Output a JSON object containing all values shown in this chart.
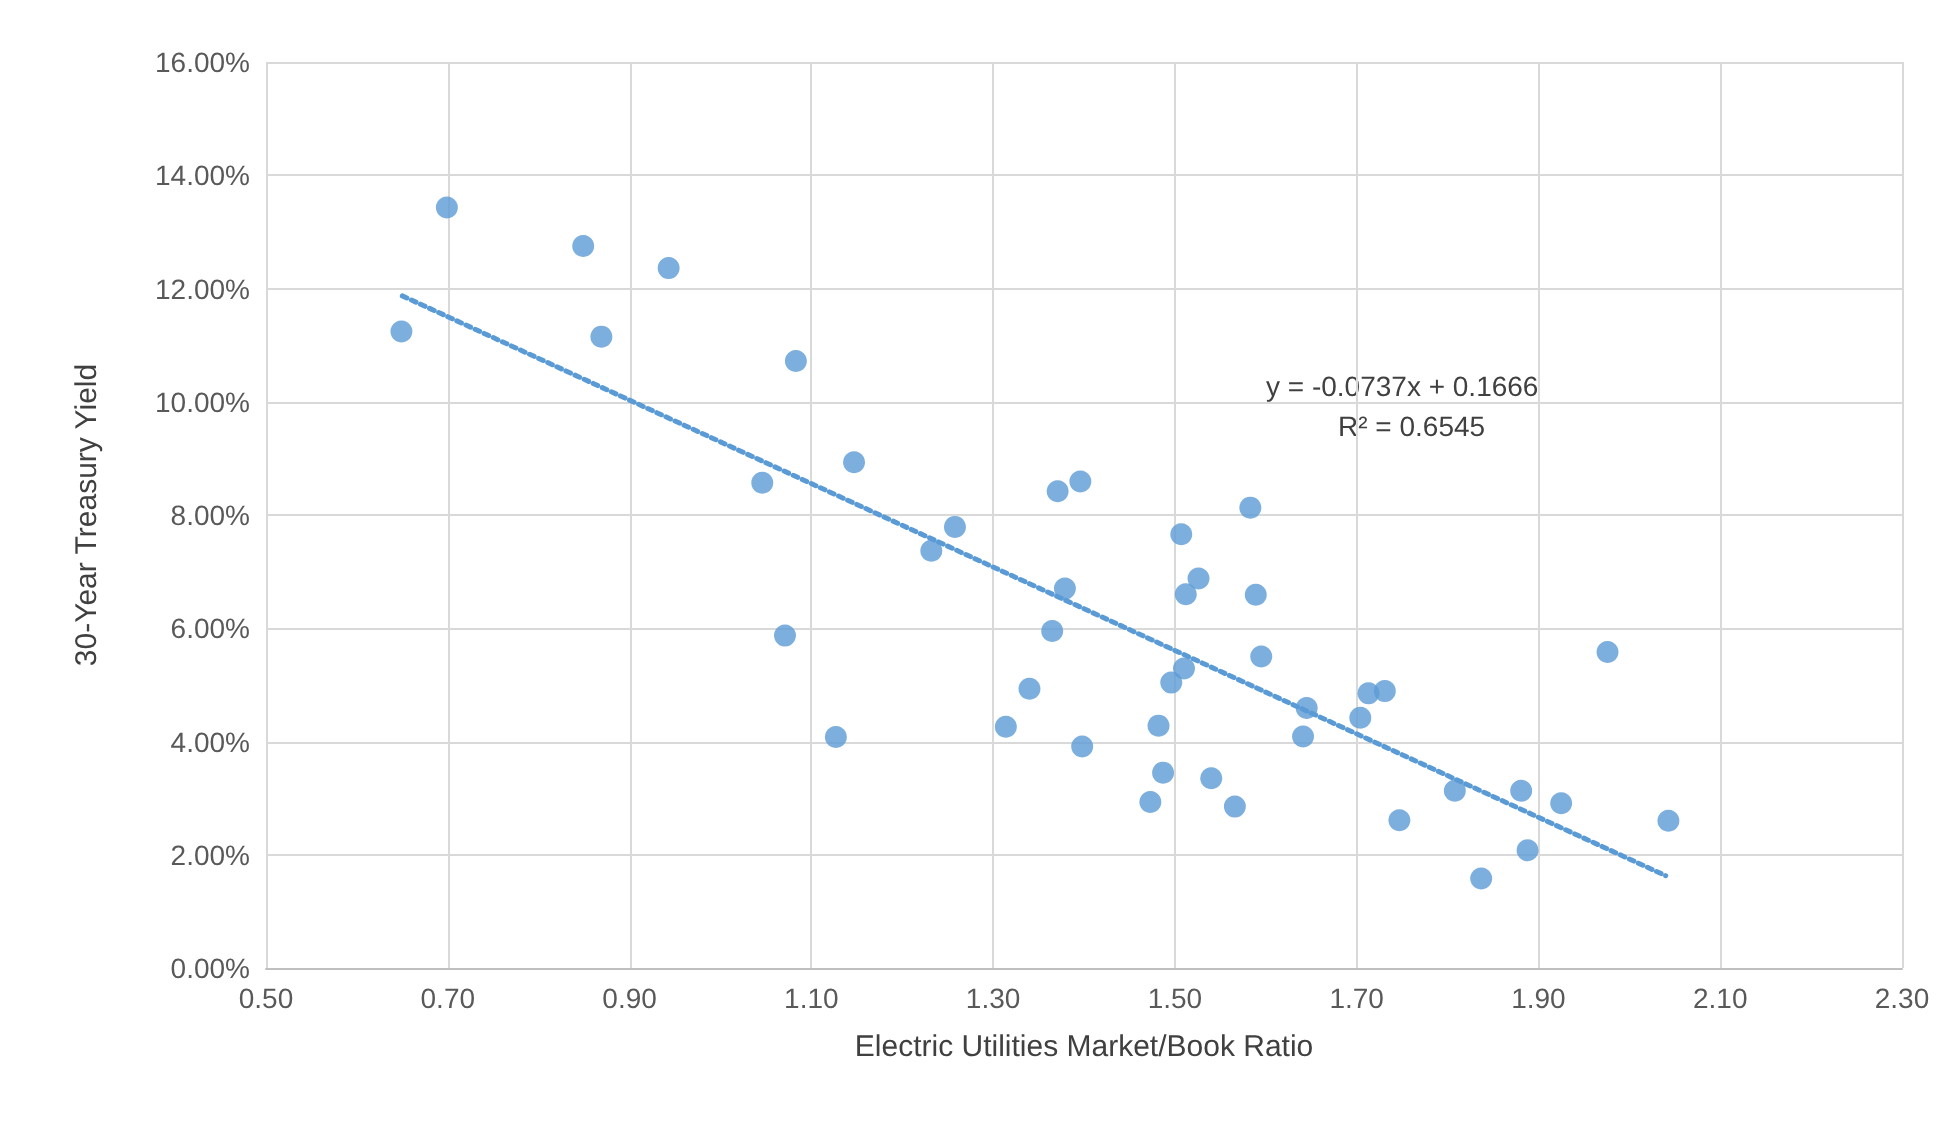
{
  "chart_data": {
    "type": "scatter",
    "xlabel": "Electric Utilities Market/Book Ratio",
    "ylabel": "30-Year Treasury Yield",
    "xlim": [
      0.5,
      2.3
    ],
    "xticks": [
      {
        "value": 0.5,
        "label": "0.50"
      },
      {
        "value": 0.7,
        "label": "0.70"
      },
      {
        "value": 0.9,
        "label": "0.90"
      },
      {
        "value": 1.1,
        "label": "1.10"
      },
      {
        "value": 1.3,
        "label": "1.30"
      },
      {
        "value": 1.5,
        "label": "1.50"
      },
      {
        "value": 1.7,
        "label": "1.70"
      },
      {
        "value": 1.9,
        "label": "1.90"
      },
      {
        "value": 2.1,
        "label": "2.10"
      },
      {
        "value": 2.3,
        "label": "2.30"
      }
    ],
    "ylim": [
      0,
      16
    ],
    "yticks": [
      {
        "value": 0,
        "label": "0.00%"
      },
      {
        "value": 2,
        "label": "2.00%"
      },
      {
        "value": 4,
        "label": "4.00%"
      },
      {
        "value": 6,
        "label": "6.00%"
      },
      {
        "value": 8,
        "label": "8.00%"
      },
      {
        "value": 10,
        "label": "10.00%"
      },
      {
        "value": 12,
        "label": "12.00%"
      },
      {
        "value": 14,
        "label": "14.00%"
      },
      {
        "value": 16,
        "label": "16.00%"
      }
    ],
    "grid": true,
    "marker": "circle",
    "series": [
      {
        "color": "#5b9bd5",
        "x": [
          0.649,
          0.699,
          0.849,
          0.869,
          0.943,
          1.083,
          1.147,
          1.046,
          1.258,
          1.232,
          1.071,
          1.127,
          1.371,
          1.396,
          1.379,
          1.365,
          1.34,
          1.314,
          1.398,
          1.507,
          1.583,
          1.526,
          1.512,
          1.589,
          1.595,
          1.51,
          1.496,
          1.482,
          1.487,
          1.473,
          1.54,
          1.566,
          1.645,
          1.641,
          1.704,
          1.713,
          1.731,
          1.747,
          1.808,
          1.881,
          1.925,
          1.837,
          1.888,
          1.976,
          2.043
        ],
        "values": [
          11.24,
          13.43,
          12.75,
          11.15,
          12.36,
          10.72,
          8.93,
          8.57,
          7.79,
          7.37,
          5.87,
          4.08,
          8.42,
          8.59,
          6.7,
          5.95,
          4.93,
          4.26,
          3.91,
          7.66,
          8.13,
          6.88,
          6.6,
          6.59,
          5.5,
          5.29,
          5.04,
          4.28,
          3.45,
          2.93,
          3.35,
          2.85,
          4.59,
          4.09,
          4.42,
          4.85,
          4.89,
          2.61,
          3.13,
          3.13,
          2.91,
          1.58,
          2.08,
          5.58,
          2.6
        ]
      },
      {
        "type": "line",
        "color": "#5b9bd5",
        "line_style": "dotted",
        "marker": "none",
        "x": [
          0.65,
          2.04
        ],
        "values": [
          11.87,
          1.63
        ]
      }
    ],
    "annotations": [
      "y = -0.0737x + 0.1666",
      "R² = 0.6545"
    ]
  }
}
